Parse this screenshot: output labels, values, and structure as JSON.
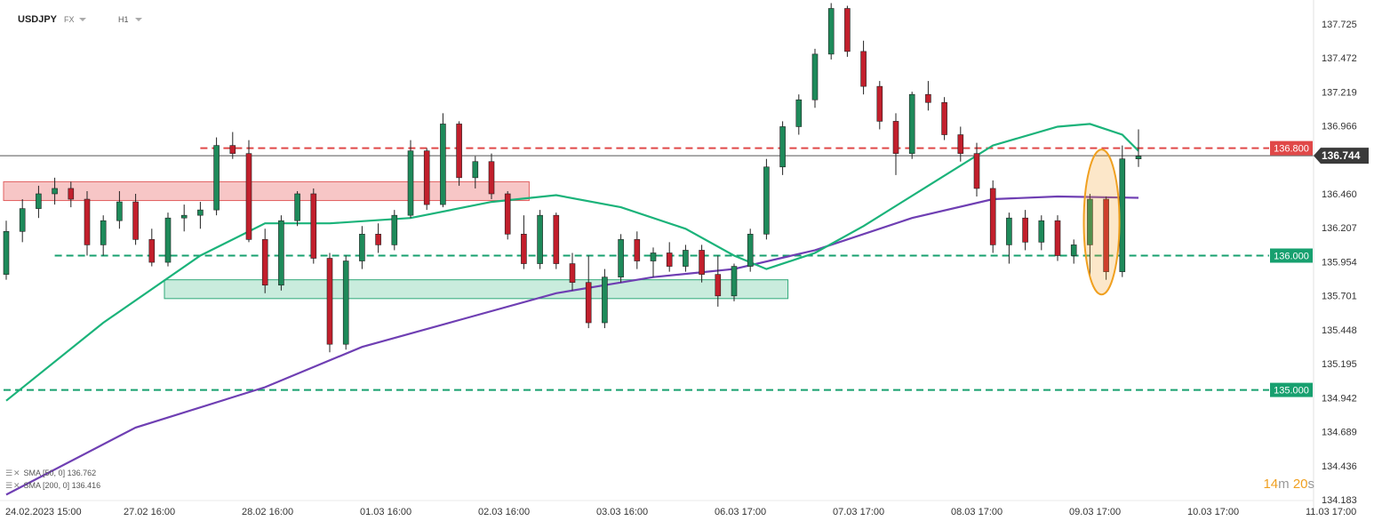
{
  "header": {
    "symbol": "USDJPY",
    "market": "FX",
    "timeframe": "H1"
  },
  "indicators": [
    {
      "label": "SMA",
      "params": "[50, 0]",
      "value": "136.762",
      "color": "#1bb37a"
    },
    {
      "label": "SMA",
      "params": "[200, 0]",
      "value": "136.416",
      "color": "#6f3fb3"
    }
  ],
  "countdown": {
    "minutes": "14",
    "minutes_unit": "m",
    "seconds": "20",
    "seconds_unit": "s"
  },
  "chart_data": {
    "type": "candlestick",
    "symbol": "USDJPY",
    "timeframe": "H1",
    "ylim": [
      134.183,
      137.85
    ],
    "y_ticks": [
      "137.725",
      "137.472",
      "137.219",
      "136.966",
      "136.460",
      "136.207",
      "135.954",
      "135.701",
      "135.448",
      "135.195",
      "134.942",
      "134.689",
      "134.436",
      "134.183"
    ],
    "x_ticks": [
      "24.02.2023  15:00",
      "27.02  16:00",
      "28.02  16:00",
      "01.03  16:00",
      "02.03  16:00",
      "03.03  16:00",
      "06.03  17:00",
      "07.03  17:00",
      "08.03  17:00",
      "09.03  17:00",
      "10.03  17:00",
      "11.03  17:00"
    ],
    "current_price": {
      "value": 136.744,
      "label": "136.744"
    },
    "levels": [
      {
        "value": 136.8,
        "label": "136.800",
        "color": "#e04848"
      },
      {
        "value": 136.0,
        "label": "136.000",
        "color": "#17a06f"
      },
      {
        "value": 135.0,
        "label": "135.000",
        "color": "#17a06f"
      }
    ],
    "zones": [
      {
        "type": "resistance",
        "from": 136.41,
        "to": 136.55,
        "start_index": 0,
        "end_index": 32,
        "color": "#f7c6c6"
      },
      {
        "type": "support",
        "from": 135.68,
        "to": 135.82,
        "start_index": 10,
        "end_index": 48,
        "color": "#c9ecdd"
      }
    ],
    "candles_start": 135.86,
    "candles": [
      [
        135.86,
        136.26,
        135.82,
        136.18
      ],
      [
        136.18,
        136.42,
        136.1,
        136.35
      ],
      [
        136.35,
        136.52,
        136.28,
        136.46
      ],
      [
        136.46,
        136.58,
        136.38,
        136.5
      ],
      [
        136.5,
        136.55,
        136.36,
        136.42
      ],
      [
        136.42,
        136.48,
        136.0,
        136.08
      ],
      [
        136.08,
        136.3,
        136.0,
        136.26
      ],
      [
        136.26,
        136.48,
        136.2,
        136.4
      ],
      [
        136.4,
        136.46,
        136.08,
        136.12
      ],
      [
        136.12,
        136.2,
        135.92,
        135.95
      ],
      [
        135.95,
        136.32,
        135.92,
        136.28
      ],
      [
        136.28,
        136.38,
        136.18,
        136.3
      ],
      [
        136.3,
        136.4,
        136.2,
        136.34
      ],
      [
        136.34,
        136.88,
        136.3,
        136.82
      ],
      [
        136.82,
        136.92,
        136.72,
        136.76
      ],
      [
        136.76,
        136.86,
        136.1,
        136.12
      ],
      [
        136.12,
        136.2,
        135.72,
        135.78
      ],
      [
        135.78,
        136.3,
        135.74,
        136.26
      ],
      [
        136.26,
        136.48,
        136.22,
        136.46
      ],
      [
        136.46,
        136.5,
        135.94,
        135.98
      ],
      [
        135.98,
        136.02,
        135.28,
        135.34
      ],
      [
        135.34,
        136.0,
        135.3,
        135.96
      ],
      [
        135.96,
        136.22,
        135.9,
        136.16
      ],
      [
        136.16,
        136.24,
        136.02,
        136.08
      ],
      [
        136.08,
        136.34,
        136.04,
        136.3
      ],
      [
        136.3,
        136.86,
        136.28,
        136.78
      ],
      [
        136.78,
        136.8,
        136.34,
        136.38
      ],
      [
        136.38,
        137.06,
        136.36,
        136.98
      ],
      [
        136.98,
        137.0,
        136.52,
        136.58
      ],
      [
        136.58,
        136.74,
        136.5,
        136.7
      ],
      [
        136.7,
        136.76,
        136.42,
        136.46
      ],
      [
        136.46,
        136.48,
        136.12,
        136.16
      ],
      [
        136.16,
        136.3,
        135.9,
        135.94
      ],
      [
        135.94,
        136.34,
        135.9,
        136.3
      ],
      [
        136.3,
        136.32,
        135.9,
        135.94
      ],
      [
        135.94,
        136.02,
        135.74,
        135.8
      ],
      [
        135.8,
        136.0,
        135.46,
        135.5
      ],
      [
        135.5,
        135.9,
        135.46,
        135.84
      ],
      [
        135.84,
        136.16,
        135.8,
        136.12
      ],
      [
        136.12,
        136.18,
        135.9,
        135.96
      ],
      [
        135.96,
        136.06,
        135.84,
        136.02
      ],
      [
        136.02,
        136.1,
        135.88,
        135.92
      ],
      [
        135.92,
        136.08,
        135.88,
        136.04
      ],
      [
        136.04,
        136.08,
        135.8,
        135.86
      ],
      [
        135.86,
        136.0,
        135.62,
        135.7
      ],
      [
        135.7,
        135.94,
        135.66,
        135.92
      ],
      [
        135.92,
        136.2,
        135.88,
        136.16
      ],
      [
        136.16,
        136.72,
        136.12,
        136.66
      ],
      [
        136.66,
        137.0,
        136.6,
        136.96
      ],
      [
        136.96,
        137.2,
        136.9,
        137.16
      ],
      [
        137.16,
        137.54,
        137.1,
        137.5
      ],
      [
        137.5,
        137.88,
        137.46,
        137.84
      ],
      [
        137.84,
        137.86,
        137.48,
        137.52
      ],
      [
        137.52,
        137.6,
        137.2,
        137.26
      ],
      [
        137.26,
        137.3,
        136.94,
        137.0
      ],
      [
        137.0,
        137.06,
        136.6,
        136.76
      ],
      [
        136.76,
        137.22,
        136.72,
        137.2
      ],
      [
        137.2,
        137.3,
        137.08,
        137.14
      ],
      [
        137.14,
        137.18,
        136.86,
        136.9
      ],
      [
        136.9,
        136.96,
        136.7,
        136.76
      ],
      [
        136.76,
        136.84,
        136.44,
        136.5
      ],
      [
        136.5,
        136.56,
        136.02,
        136.08
      ],
      [
        136.08,
        136.32,
        135.94,
        136.28
      ],
      [
        136.28,
        136.34,
        136.04,
        136.1
      ],
      [
        136.1,
        136.3,
        136.04,
        136.26
      ],
      [
        136.26,
        136.3,
        135.96,
        136.0
      ],
      [
        136.0,
        136.12,
        135.94,
        136.08
      ],
      [
        136.08,
        136.46,
        135.84,
        136.42
      ],
      [
        136.42,
        136.44,
        135.82,
        135.88
      ],
      [
        135.88,
        136.82,
        135.84,
        136.72
      ],
      [
        136.72,
        136.94,
        136.66,
        136.74
      ]
    ],
    "sma_50": [
      [
        0,
        134.92
      ],
      [
        6,
        135.5
      ],
      [
        12,
        136.0
      ],
      [
        16,
        136.24
      ],
      [
        20,
        136.24
      ],
      [
        25,
        136.28
      ],
      [
        30,
        136.4
      ],
      [
        34,
        136.45
      ],
      [
        38,
        136.36
      ],
      [
        42,
        136.2
      ],
      [
        45,
        136.0
      ],
      [
        47,
        135.9
      ],
      [
        50,
        136.02
      ],
      [
        53,
        136.22
      ],
      [
        57,
        136.52
      ],
      [
        61,
        136.82
      ],
      [
        65,
        136.96
      ],
      [
        67,
        136.98
      ],
      [
        69,
        136.9
      ],
      [
        70,
        136.78
      ]
    ],
    "sma_200": [
      [
        0,
        134.22
      ],
      [
        8,
        134.72
      ],
      [
        16,
        135.02
      ],
      [
        22,
        135.32
      ],
      [
        28,
        135.52
      ],
      [
        34,
        135.72
      ],
      [
        40,
        135.84
      ],
      [
        45,
        135.9
      ],
      [
        50,
        136.04
      ],
      [
        56,
        136.28
      ],
      [
        61,
        136.42
      ],
      [
        65,
        136.44
      ],
      [
        70,
        136.43
      ]
    ]
  }
}
